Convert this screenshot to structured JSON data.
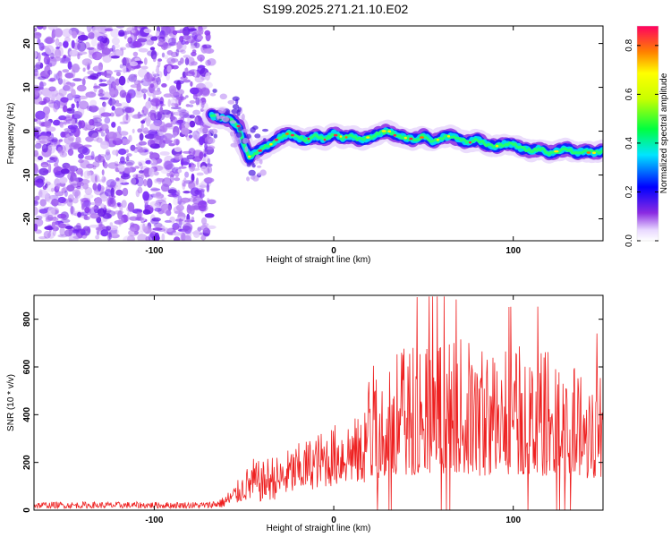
{
  "title": "S199.2025.271.21.10.E02",
  "chart_data": [
    {
      "type": "heatmap",
      "name": "spectrogram",
      "xlabel": "Height of straight line (km)",
      "ylabel": "Frequency (Hz)",
      "xlim": [
        -167,
        150
      ],
      "ylim": [
        -25,
        24
      ],
      "xticks": [
        -100,
        0,
        100
      ],
      "yticks": [
        -20,
        -10,
        0,
        10,
        20
      ],
      "colorbar": {
        "label": "Normalized spectral amplitude",
        "range": [
          0.0,
          0.88
        ],
        "ticks": [
          0.0,
          0.2,
          0.4,
          0.6,
          0.8
        ]
      },
      "noise_region_x": [
        -167,
        -68
      ],
      "trace": {
        "x": [
          -68,
          -62,
          -57,
          -53,
          -50,
          -47,
          -44,
          -40,
          -35,
          -30,
          -25,
          -20,
          -15,
          -10,
          -5,
          0,
          5,
          10,
          15,
          20,
          25,
          30,
          35,
          40,
          45,
          50,
          55,
          60,
          65,
          70,
          75,
          80,
          85,
          90,
          95,
          100,
          105,
          110,
          115,
          120,
          125,
          130,
          135,
          140,
          145,
          150
        ],
        "freq": [
          3.5,
          3.0,
          2.5,
          1.0,
          -3.0,
          -6.0,
          -5.0,
          -4.0,
          -3.0,
          -1.5,
          -0.5,
          -1.5,
          -2.0,
          -1.0,
          -2.0,
          -0.5,
          -1.5,
          -1.0,
          -2.0,
          -1.5,
          -0.5,
          0.0,
          -1.0,
          -1.5,
          -2.0,
          -1.0,
          -2.5,
          -1.5,
          -1.0,
          -2.0,
          -2.5,
          -2.0,
          -3.0,
          -3.5,
          -3.0,
          -3.0,
          -4.0,
          -4.5,
          -4.0,
          -5.0,
          -4.5,
          -4.0,
          -5.0,
          -4.5,
          -5.0,
          -4.5
        ]
      }
    },
    {
      "type": "line",
      "name": "snr",
      "xlabel": "Height of straight line (km)",
      "ylabel": "SNR (10 * v/v)",
      "xlim": [
        -167,
        150
      ],
      "ylim": [
        0,
        900
      ],
      "xticks": [
        -100,
        0,
        100
      ],
      "yticks": [
        0,
        200,
        400,
        600,
        800
      ],
      "color": "#ff0000",
      "envelope": {
        "x": [
          -167,
          -70,
          -62,
          -55,
          -50,
          -45,
          -40,
          -35,
          -30,
          -25,
          -20,
          -10,
          0,
          10,
          15,
          20,
          30,
          40,
          50,
          60,
          70,
          80,
          90,
          100,
          110,
          120,
          130,
          140,
          150
        ],
        "low": [
          8,
          8,
          10,
          20,
          40,
          30,
          35,
          40,
          50,
          60,
          70,
          90,
          100,
          110,
          100,
          120,
          150,
          140,
          160,
          150,
          160,
          140,
          150,
          150,
          150,
          140,
          150,
          130,
          140
        ],
        "high": [
          35,
          35,
          55,
          110,
          160,
          220,
          200,
          240,
          220,
          260,
          280,
          320,
          360,
          400,
          380,
          600,
          700,
          680,
          760,
          740,
          720,
          700,
          690,
          700,
          710,
          680,
          650,
          620,
          600
        ]
      }
    }
  ]
}
